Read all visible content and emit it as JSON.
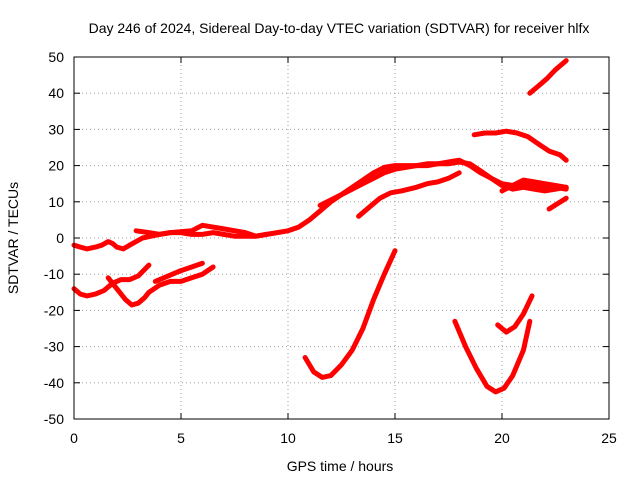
{
  "chart_data": {
    "type": "line",
    "title": "Day 246 of 2024, Sidereal Day-to-day VTEC variation (SDTVAR) for receiver hlfx",
    "xlabel": "GPS time / hours",
    "ylabel": "SDTVAR / TECUs",
    "xlim": [
      0,
      25
    ],
    "ylim": [
      -50,
      50
    ],
    "xticks": [
      "0",
      "5",
      "10",
      "15",
      "20",
      "25"
    ],
    "yticks": [
      "-50",
      "-40",
      "-30",
      "-20",
      "-10",
      "0",
      "10",
      "20",
      "30",
      "40",
      "50"
    ],
    "grid": true,
    "series_color": "#ff0000",
    "series": [
      {
        "x": [
          0.0,
          0.3,
          0.6,
          1.0,
          1.3,
          1.6,
          1.8,
          2.0,
          2.3,
          2.6,
          2.9,
          3.2,
          3.6,
          4.0,
          4.5,
          5.0,
          5.5,
          6.0,
          6.5,
          7.0,
          7.5,
          8.0,
          8.5,
          9.0,
          9.5,
          10.0,
          10.5,
          11.0,
          11.5,
          12.0,
          12.5,
          13.0,
          13.5,
          14.0,
          14.5,
          15.0,
          15.5,
          16.0,
          16.5,
          17.0,
          17.5,
          18.0,
          18.5,
          19.0,
          19.5,
          20.0,
          20.5,
          21.0,
          21.5,
          22.0,
          22.5,
          23.0
        ],
        "y": [
          -2,
          -2.5,
          -3,
          -2.5,
          -2,
          -1,
          -1.5,
          -2.5,
          -3,
          -2,
          -1,
          0,
          0.5,
          1,
          1.5,
          1.5,
          1,
          1,
          1.5,
          1,
          0.5,
          0.5,
          0.5,
          1,
          1.5,
          2,
          3,
          5,
          7.5,
          10,
          12,
          14,
          16,
          18,
          19.5,
          20,
          20,
          20,
          20.5,
          20.5,
          20.5,
          21,
          20.5,
          18.5,
          16.5,
          14.5,
          13.5,
          14,
          13.5,
          13,
          13.5,
          14
        ]
      },
      {
        "x": [
          0.0,
          0.3,
          0.6,
          1.0,
          1.4,
          1.8,
          2.2,
          2.6,
          3.0,
          3.5
        ],
        "y": [
          -14,
          -15.5,
          -16,
          -15.5,
          -14.5,
          -12.5,
          -11.5,
          -11.5,
          -10.5,
          -7.5
        ]
      },
      {
        "x": [
          1.6,
          2.0,
          2.4,
          2.7,
          3.0,
          3.3,
          3.5,
          4.0,
          4.5,
          5.0,
          5.5,
          6.0,
          6.5
        ],
        "y": [
          -11,
          -14,
          -17,
          -18.5,
          -18,
          -16.5,
          -15,
          -13,
          -12,
          -12,
          -11,
          -10,
          -8
        ]
      },
      {
        "x": [
          3.8,
          4.2,
          4.6,
          5.0,
          5.5,
          6.0
        ],
        "y": [
          -12,
          -11,
          -10,
          -9,
          -8,
          -7
        ]
      },
      {
        "x": [
          2.9,
          3.5,
          4.0,
          4.5,
          5.5,
          6.0,
          7.0,
          8.0,
          8.5,
          9.0
        ],
        "y": [
          2,
          1.5,
          1,
          1.5,
          2,
          3.5,
          2.5,
          1.5,
          0.5,
          1
        ]
      },
      {
        "x": [
          11.5,
          12.0,
          12.5,
          13.0,
          13.5,
          14.0,
          14.5,
          15.0,
          15.5,
          16.0,
          16.5,
          17.0,
          17.5,
          18.0,
          18.5,
          19.0,
          19.5,
          20.0,
          20.5,
          21.0,
          21.5,
          22.0,
          22.5,
          23.0
        ],
        "y": [
          9,
          10.5,
          12,
          13.5,
          15,
          16.5,
          18,
          19,
          19.5,
          20,
          20,
          20.5,
          21,
          21.5,
          20,
          18,
          16.5,
          15,
          14.5,
          15,
          14.5,
          14,
          14,
          13.5
        ]
      },
      {
        "x": [
          13.3,
          13.8,
          14.3,
          14.8,
          15.3,
          16.0,
          16.5,
          17.0,
          17.5,
          18.0
        ],
        "y": [
          6,
          8.5,
          11,
          12.5,
          13,
          14,
          15,
          15.5,
          16.5,
          18
        ]
      },
      {
        "x": [
          18.7,
          19.2,
          19.7,
          20.2,
          20.7,
          21.2,
          21.7,
          22.2,
          22.7,
          23.0
        ],
        "y": [
          28.5,
          29,
          29,
          29.5,
          29,
          28,
          26,
          24,
          23,
          21.5
        ]
      },
      {
        "x": [
          20.0,
          20.5,
          21.0,
          21.5,
          22.0,
          22.5,
          23.0
        ],
        "y": [
          13,
          14.5,
          16,
          15.5,
          15,
          14.5,
          14
        ]
      },
      {
        "x": [
          22.2,
          22.6,
          23.0
        ],
        "y": [
          8,
          9.5,
          11
        ]
      },
      {
        "x": [
          21.3,
          21.7,
          22.1,
          22.5,
          23.0
        ],
        "y": [
          40,
          42,
          44,
          46.5,
          49
        ]
      },
      {
        "x": [
          10.8,
          11.2,
          11.6,
          12.0,
          12.5,
          13.0,
          13.5,
          14.0,
          14.5,
          15.0
        ],
        "y": [
          -33,
          -37,
          -38.5,
          -38,
          -35,
          -31,
          -25,
          -17,
          -10,
          -3.5
        ]
      },
      {
        "x": [
          17.8,
          18.3,
          18.8,
          19.3,
          19.7,
          20.1,
          20.5,
          21.0,
          21.3
        ],
        "y": [
          -23,
          -30,
          -36,
          -41,
          -42.5,
          -41.5,
          -38,
          -31,
          -23
        ]
      },
      {
        "x": [
          19.8,
          20.2,
          20.6,
          21.0,
          21.4
        ],
        "y": [
          -24,
          -26,
          -24.5,
          -21,
          -16
        ]
      }
    ]
  }
}
